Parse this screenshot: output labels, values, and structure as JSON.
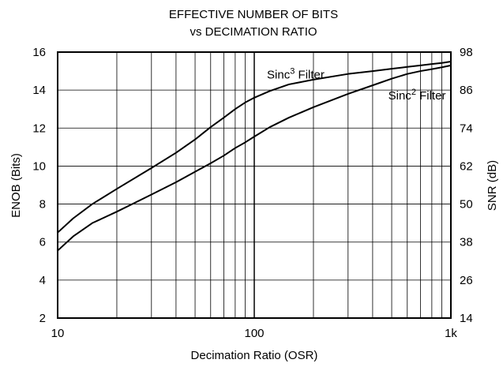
{
  "chart_data": {
    "type": "line",
    "title_lines": [
      "EFFECTIVE NUMBER OF BITS",
      "vs DECIMATION RATIO"
    ],
    "xlabel": "Decimation Ratio (OSR)",
    "ylabel": "ENOB (Bits)",
    "y2label": "SNR (dB)",
    "xscale": "log",
    "xlim": [
      10,
      1000
    ],
    "ylim": [
      2,
      16
    ],
    "y2lim": [
      14,
      98
    ],
    "grid": true,
    "x_ticks": [
      {
        "value": 10,
        "label": "10"
      },
      {
        "value": 100,
        "label": "100"
      },
      {
        "value": 1000,
        "label": "1k"
      }
    ],
    "y_ticks": [
      {
        "value": 2,
        "label": "2"
      },
      {
        "value": 4,
        "label": "4"
      },
      {
        "value": 6,
        "label": "6"
      },
      {
        "value": 8,
        "label": "8"
      },
      {
        "value": 10,
        "label": "10"
      },
      {
        "value": 12,
        "label": "12"
      },
      {
        "value": 14,
        "label": "14"
      },
      {
        "value": 16,
        "label": "16"
      }
    ],
    "y2_ticks": [
      {
        "value": 14,
        "label": "14"
      },
      {
        "value": 26,
        "label": "26"
      },
      {
        "value": 38,
        "label": "38"
      },
      {
        "value": 50,
        "label": "50"
      },
      {
        "value": 62,
        "label": "62"
      },
      {
        "value": 74,
        "label": "74"
      },
      {
        "value": 86,
        "label": "86"
      },
      {
        "value": 98,
        "label": "98"
      }
    ],
    "series": [
      {
        "name": "Sinc3 Filter",
        "label_parts": [
          "Sinc",
          "3",
          " Filter"
        ],
        "label_anchor": {
          "x": 116,
          "y": 14.6
        },
        "x": [
          10,
          12,
          15,
          20,
          30,
          40,
          50,
          60,
          70,
          80,
          90,
          100,
          120,
          150,
          200,
          300,
          400,
          500,
          600,
          700,
          800,
          900,
          1000
        ],
        "y": [
          6.5,
          7.25,
          8.0,
          8.8,
          9.9,
          10.7,
          11.4,
          12.05,
          12.55,
          13.0,
          13.35,
          13.6,
          13.95,
          14.3,
          14.55,
          14.85,
          15.0,
          15.12,
          15.22,
          15.3,
          15.37,
          15.43,
          15.5
        ]
      },
      {
        "name": "Sinc2 Filter",
        "label_parts": [
          "Sinc",
          "2",
          " Filter"
        ],
        "label_anchor": {
          "x": 480,
          "y": 13.5
        },
        "x": [
          10,
          12,
          15,
          20,
          30,
          40,
          50,
          60,
          70,
          80,
          90,
          100,
          120,
          150,
          200,
          300,
          400,
          500,
          600,
          700,
          800,
          900,
          1000
        ],
        "y": [
          5.55,
          6.3,
          7.0,
          7.6,
          8.5,
          9.15,
          9.7,
          10.15,
          10.55,
          10.95,
          11.25,
          11.55,
          12.05,
          12.55,
          13.1,
          13.8,
          14.25,
          14.6,
          14.85,
          15.0,
          15.1,
          15.2,
          15.3
        ]
      }
    ]
  }
}
